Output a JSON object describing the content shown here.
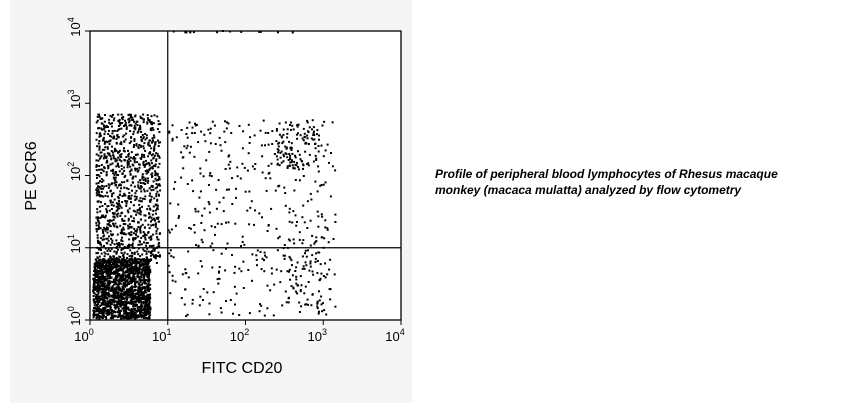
{
  "caption": "Profile of peripheral blood lymphocytes of Rhesus macaque monkey (macaca mulatta) analyzed by flow cytometry",
  "chart_data": {
    "type": "scatter",
    "xlabel": "FITC CD20",
    "ylabel": "PE CCR6",
    "xscale": "log",
    "yscale": "log",
    "xlim": [
      1,
      10000
    ],
    "ylim": [
      1,
      10000
    ],
    "xticks": [
      {
        "base": "10",
        "exp": "0"
      },
      {
        "base": "10",
        "exp": "1"
      },
      {
        "base": "10",
        "exp": "2"
      },
      {
        "base": "10",
        "exp": "3"
      },
      {
        "base": "10",
        "exp": "4"
      }
    ],
    "yticks": [
      {
        "base": "10",
        "exp": "0"
      },
      {
        "base": "10",
        "exp": "1"
      },
      {
        "base": "10",
        "exp": "2"
      },
      {
        "base": "10",
        "exp": "3"
      },
      {
        "base": "10",
        "exp": "4"
      }
    ],
    "quadrant_gates": {
      "x": 10,
      "y": 10
    },
    "grid": false,
    "point_color": "#000000",
    "populations": [
      {
        "x_range": [
          1.1,
          6
        ],
        "y_range": [
          1.05,
          7
        ],
        "count": 1700
      },
      {
        "x_range": [
          1.2,
          8
        ],
        "y_range": [
          6,
          700
        ],
        "count": 1100
      },
      {
        "x_range": [
          10,
          1500
        ],
        "y_range": [
          1.1,
          600
        ],
        "count": 420
      },
      {
        "x_range": [
          250,
          900
        ],
        "y_range": [
          120,
          550
        ],
        "count": 110
      },
      {
        "x_range": [
          350,
          1000
        ],
        "y_range": [
          1.5,
          15
        ],
        "count": 60
      },
      {
        "x_range": [
          10,
          450
        ],
        "y_range": [
          9500,
          10000
        ],
        "count": 14
      }
    ]
  }
}
